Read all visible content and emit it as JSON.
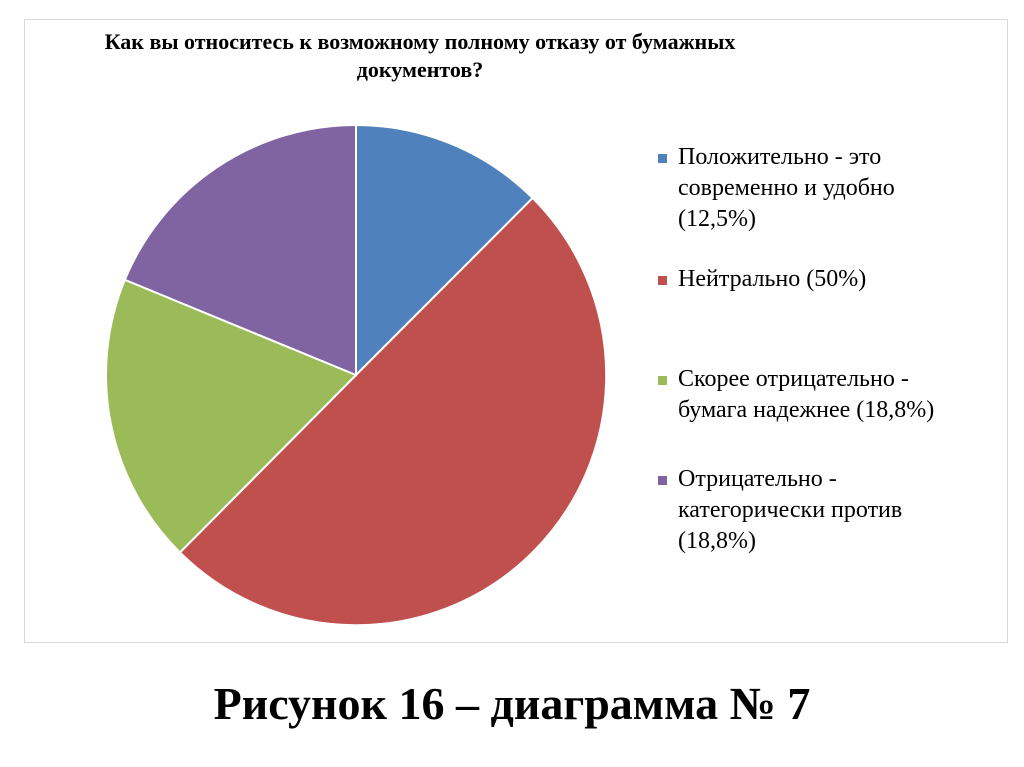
{
  "chart_data": {
    "type": "pie",
    "title": "Как вы относитесь к возможному полному отказу от бумажных документов?",
    "categories": [
      "Положительно - это современно и удобно (12,5%)",
      "Нейтрально (50%)",
      "Скорее отрицательно - бумага надежнее (18,8%)",
      "Отрицательно - категорически против (18,8%)"
    ],
    "values": [
      12.5,
      50,
      18.8,
      18.8
    ],
    "colors": [
      "#4F81BD",
      "#C0504D",
      "#9BBB59",
      "#8064A2"
    ],
    "legend_position": "right",
    "start_angle": "top, clockwise"
  },
  "caption": "Рисунок 16 – диаграмма № 7"
}
